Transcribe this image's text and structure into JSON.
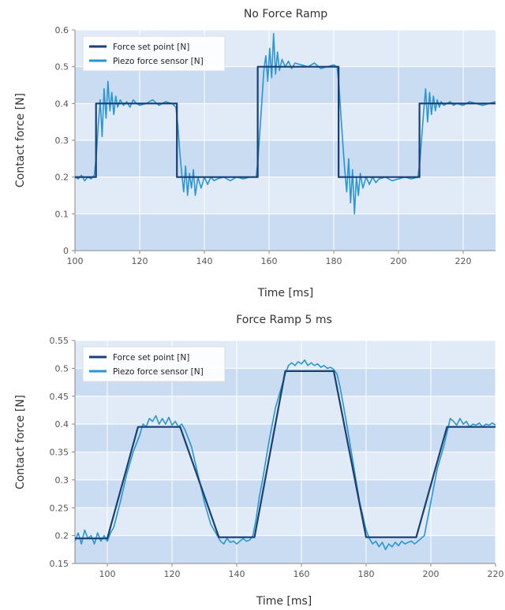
{
  "colors": {
    "setpoint": "#1b3f73",
    "sensor": "#2a95d2",
    "band_dark": "#c9dcf1",
    "band_light": "#e0ebf7",
    "grid": "#ffffff"
  },
  "chart_data": [
    {
      "type": "line",
      "title": "No Force Ramp",
      "xlabel": "Time [ms]",
      "ylabel": "Contact force [N]",
      "xlim": [
        100,
        230
      ],
      "ylim": [
        0,
        0.6
      ],
      "xticks": [
        100,
        120,
        140,
        160,
        180,
        200,
        220
      ],
      "xtick_labels": [
        "100",
        "120",
        "140",
        "160",
        "180",
        "200",
        "220"
      ],
      "yticks": [
        0,
        0.1,
        0.2,
        0.3,
        0.4,
        0.5,
        0.6
      ],
      "ytick_labels": [
        "0",
        "0.1",
        "0.2",
        "0.3",
        "0.4",
        "0.5",
        "0.6"
      ],
      "grid": true,
      "legend_position": "top-left",
      "series": [
        {
          "name": "Force set point [N]",
          "color_key": "setpoint",
          "x": [
            100,
            106.5,
            106.5,
            131.5,
            131.5,
            156.5,
            156.5,
            181.5,
            181.5,
            206.5,
            206.5,
            230
          ],
          "y": [
            0.2,
            0.2,
            0.4,
            0.4,
            0.2,
            0.2,
            0.5,
            0.5,
            0.2,
            0.2,
            0.4,
            0.4
          ]
        },
        {
          "name": "Piezo force sensor [N]",
          "color_key": "sensor",
          "x": [
            100,
            101,
            102,
            103,
            104,
            105,
            106,
            106.6,
            107.2,
            107.8,
            108.4,
            109,
            109.6,
            110.2,
            110.8,
            111.4,
            112,
            112.6,
            113.2,
            114,
            115,
            116,
            117,
            118,
            119,
            120,
            122,
            124,
            126,
            128,
            130,
            131.2,
            131.8,
            132.4,
            133,
            133.6,
            134.2,
            134.8,
            135.4,
            136,
            136.6,
            137.2,
            138,
            139,
            140,
            141,
            142,
            143,
            144,
            146,
            148,
            150,
            152,
            154,
            156,
            156.6,
            157.2,
            157.8,
            158.4,
            159,
            159.6,
            160.2,
            160.8,
            161.4,
            162,
            162.6,
            163.2,
            164,
            165,
            166,
            167,
            168,
            170,
            172,
            174,
            176,
            178,
            180,
            181,
            181.6,
            182.2,
            182.8,
            183.4,
            184,
            184.6,
            185.2,
            185.8,
            186.4,
            187,
            187.6,
            188.2,
            189,
            190,
            191,
            192,
            193,
            194,
            196,
            198,
            200,
            202,
            204,
            206,
            206.6,
            207.2,
            207.8,
            208.4,
            209,
            209.6,
            210.2,
            210.8,
            211.4,
            212,
            212.6,
            213.2,
            214,
            215,
            216,
            217,
            218,
            220,
            222,
            224,
            226,
            228,
            230
          ],
          "y": [
            0.2,
            0.195,
            0.205,
            0.19,
            0.2,
            0.195,
            0.205,
            0.26,
            0.34,
            0.41,
            0.31,
            0.44,
            0.36,
            0.46,
            0.38,
            0.43,
            0.37,
            0.42,
            0.39,
            0.41,
            0.395,
            0.405,
            0.39,
            0.41,
            0.4,
            0.395,
            0.4,
            0.41,
            0.395,
            0.405,
            0.4,
            0.39,
            0.34,
            0.27,
            0.21,
            0.16,
            0.23,
            0.15,
            0.21,
            0.17,
            0.22,
            0.15,
            0.2,
            0.17,
            0.2,
            0.18,
            0.2,
            0.19,
            0.195,
            0.2,
            0.19,
            0.2,
            0.195,
            0.2,
            0.2,
            0.25,
            0.33,
            0.41,
            0.49,
            0.53,
            0.46,
            0.55,
            0.47,
            0.59,
            0.48,
            0.54,
            0.49,
            0.52,
            0.5,
            0.515,
            0.495,
            0.51,
            0.505,
            0.5,
            0.51,
            0.495,
            0.5,
            0.505,
            0.5,
            0.45,
            0.37,
            0.29,
            0.22,
            0.16,
            0.25,
            0.13,
            0.22,
            0.1,
            0.2,
            0.15,
            0.21,
            0.17,
            0.2,
            0.18,
            0.2,
            0.185,
            0.195,
            0.2,
            0.19,
            0.195,
            0.2,
            0.195,
            0.2,
            0.24,
            0.31,
            0.38,
            0.44,
            0.35,
            0.43,
            0.37,
            0.42,
            0.38,
            0.41,
            0.39,
            0.405,
            0.395,
            0.4,
            0.405,
            0.395,
            0.4,
            0.395,
            0.405,
            0.4,
            0.395,
            0.4,
            0.405
          ]
        }
      ]
    },
    {
      "type": "line",
      "title": "Force Ramp 5 ms",
      "xlabel": "Time [ms]",
      "ylabel": "Contact force [N]",
      "xlim": [
        90,
        220
      ],
      "ylim": [
        0.15,
        0.55
      ],
      "xticks": [
        100,
        120,
        140,
        160,
        180,
        200,
        220
      ],
      "xtick_labels": [
        "100",
        "120",
        "140",
        "160",
        "180",
        "200",
        "220"
      ],
      "yticks": [
        0.15,
        0.2,
        0.25,
        0.3,
        0.35,
        0.4,
        0.45,
        0.5,
        0.55
      ],
      "ytick_labels": [
        "0.15",
        "0.2",
        "0.25",
        "0.3",
        "0.35",
        "0.4",
        "0.45",
        "0.5",
        "0.55"
      ],
      "grid": true,
      "legend_position": "top-left",
      "series": [
        {
          "name": "Force set point [N]",
          "color_key": "setpoint",
          "x": [
            90,
            100,
            109.5,
            122.5,
            134.5,
            145.5,
            155,
            170,
            180,
            195.5,
            205,
            220
          ],
          "y": [
            0.195,
            0.195,
            0.395,
            0.395,
            0.197,
            0.197,
            0.495,
            0.495,
            0.197,
            0.197,
            0.395,
            0.395
          ]
        },
        {
          "name": "Piezo force sensor [N]",
          "color_key": "sensor",
          "x": [
            90,
            91,
            92,
            93,
            94,
            95,
            96,
            97,
            98,
            99,
            100,
            101,
            102,
            104,
            106,
            108,
            110,
            111,
            112,
            113,
            114,
            115,
            116,
            117,
            118,
            119,
            120,
            121,
            122,
            123,
            124,
            126,
            128,
            130,
            132,
            134,
            135,
            136,
            137,
            138,
            139,
            140,
            141,
            142,
            143,
            144,
            145,
            146,
            147,
            148,
            150,
            152,
            154,
            155,
            156,
            157,
            158,
            159,
            160,
            161,
            162,
            163,
            164,
            165,
            166,
            167,
            168,
            169,
            170,
            171,
            172,
            174,
            176,
            178,
            180,
            181,
            182,
            183,
            184,
            185,
            186,
            187,
            188,
            189,
            190,
            191,
            192,
            193,
            194,
            195,
            196,
            197,
            198,
            200,
            202,
            204,
            205,
            206,
            207,
            208,
            209,
            210,
            211,
            212,
            213,
            214,
            215,
            216,
            217,
            218,
            219,
            220
          ],
          "y": [
            0.19,
            0.205,
            0.185,
            0.21,
            0.195,
            0.2,
            0.185,
            0.205,
            0.19,
            0.2,
            0.19,
            0.205,
            0.215,
            0.26,
            0.31,
            0.35,
            0.38,
            0.4,
            0.395,
            0.41,
            0.405,
            0.415,
            0.4,
            0.41,
            0.4,
            0.412,
            0.398,
            0.405,
            0.395,
            0.4,
            0.39,
            0.36,
            0.31,
            0.26,
            0.22,
            0.2,
            0.19,
            0.185,
            0.195,
            0.188,
            0.19,
            0.185,
            0.19,
            0.195,
            0.19,
            0.192,
            0.2,
            0.23,
            0.27,
            0.3,
            0.37,
            0.43,
            0.47,
            0.49,
            0.505,
            0.51,
            0.505,
            0.512,
            0.508,
            0.515,
            0.505,
            0.51,
            0.505,
            0.508,
            0.502,
            0.505,
            0.5,
            0.502,
            0.498,
            0.49,
            0.465,
            0.4,
            0.33,
            0.26,
            0.21,
            0.195,
            0.185,
            0.19,
            0.18,
            0.188,
            0.175,
            0.185,
            0.18,
            0.188,
            0.182,
            0.19,
            0.185,
            0.188,
            0.19,
            0.185,
            0.19,
            0.195,
            0.2,
            0.26,
            0.32,
            0.36,
            0.385,
            0.41,
            0.405,
            0.398,
            0.41,
            0.4,
            0.405,
            0.395,
            0.4,
            0.398,
            0.402,
            0.395,
            0.4,
            0.398,
            0.402,
            0.398
          ]
        }
      ]
    }
  ]
}
